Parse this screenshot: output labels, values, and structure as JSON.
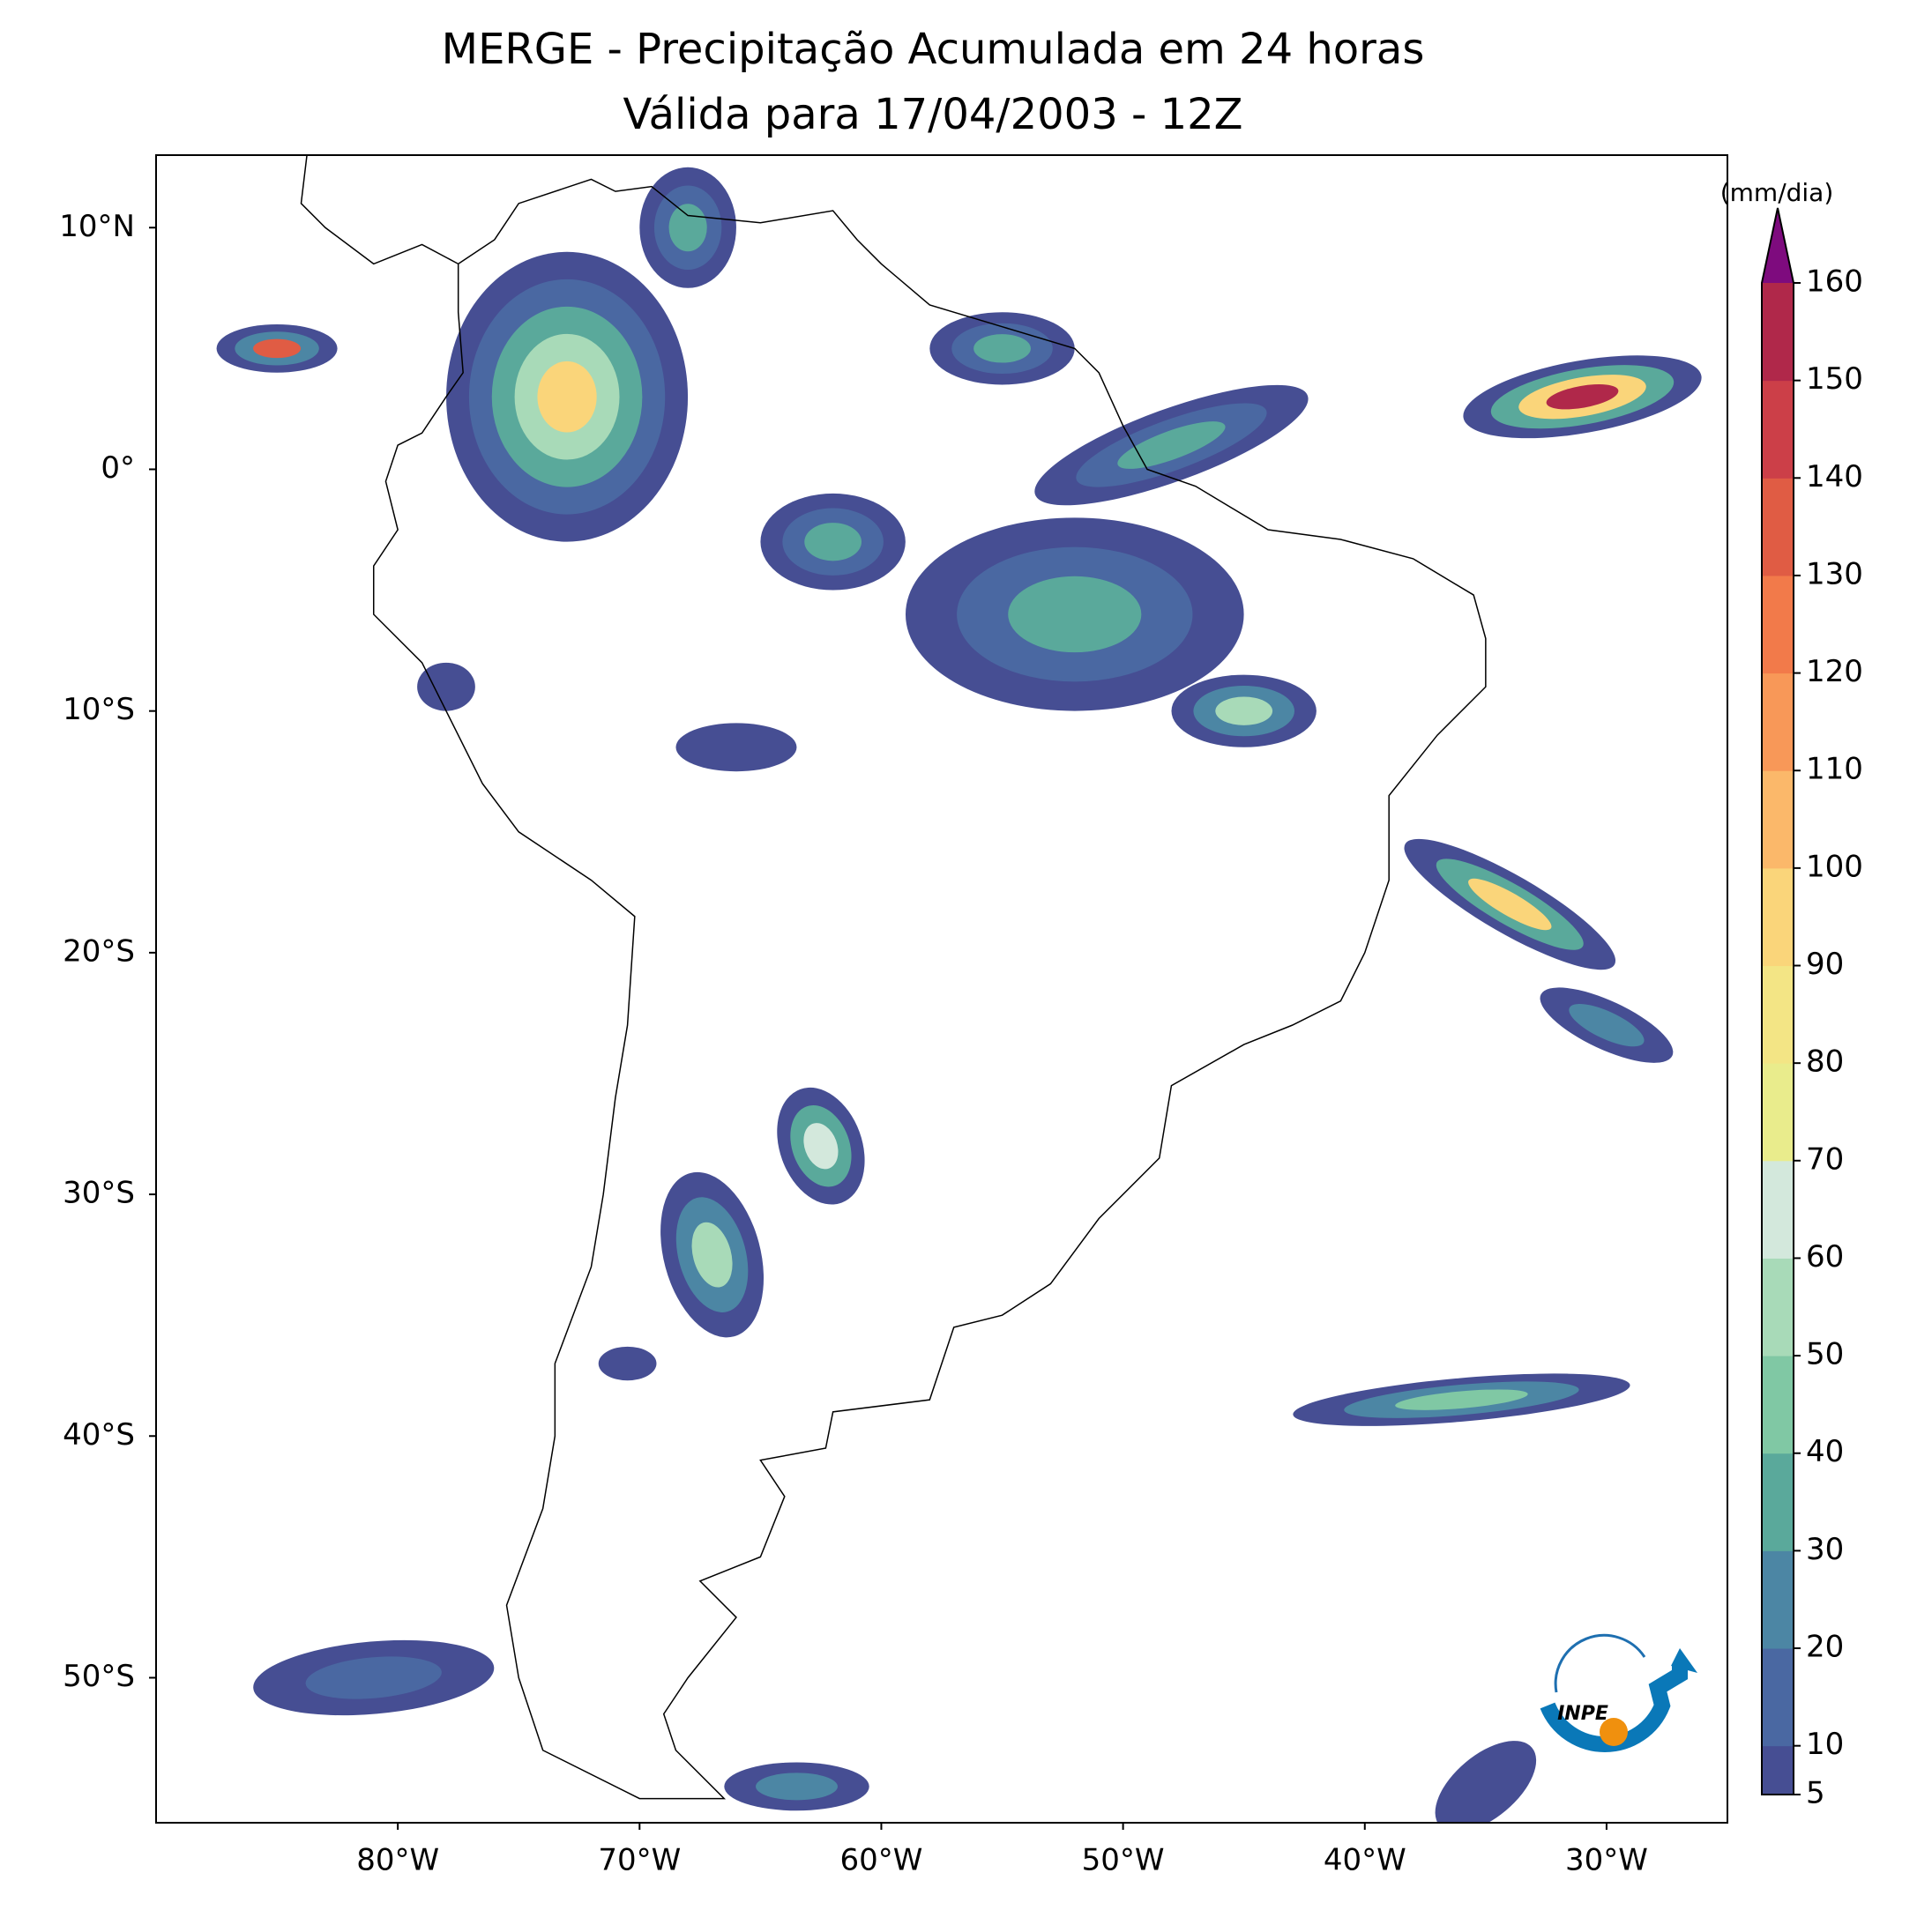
{
  "chart_data": {
    "type": "contour-map",
    "title": "MERGE - Precipitação Acumulada em 24 horas",
    "subtitle": "Válida para 17/04/2003 - 12Z",
    "xlim": [
      -90,
      -25
    ],
    "ylim": [
      -56,
      13
    ],
    "xticks": [
      {
        "value": -80,
        "label": "80°W"
      },
      {
        "value": -70,
        "label": "70°W"
      },
      {
        "value": -60,
        "label": "60°W"
      },
      {
        "value": -50,
        "label": "50°W"
      },
      {
        "value": -40,
        "label": "40°W"
      },
      {
        "value": -30,
        "label": "30°W"
      }
    ],
    "yticks": [
      {
        "value": 10,
        "label": "10°N"
      },
      {
        "value": 0,
        "label": "0°"
      },
      {
        "value": -10,
        "label": "10°S"
      },
      {
        "value": -20,
        "label": "20°S"
      },
      {
        "value": -30,
        "label": "30°S"
      },
      {
        "value": -40,
        "label": "40°S"
      },
      {
        "value": -50,
        "label": "50°S"
      }
    ],
    "colorbar": {
      "label": "(mm/dia)",
      "lim": [
        5,
        160
      ],
      "ticks": [
        5,
        10,
        20,
        30,
        40,
        50,
        60,
        70,
        80,
        90,
        100,
        110,
        120,
        130,
        140,
        150,
        160
      ],
      "colors": [
        "#464e93",
        "#4a68a2",
        "#4c86a4",
        "#5aa99b",
        "#80c8a4",
        "#a8dab8",
        "#d3e8dc",
        "#e9ec8c",
        "#f3e585",
        "#fad57a",
        "#fbb86a",
        "#f89858",
        "#f27a4a",
        "#e05c44",
        "#cc3f48",
        "#b0284a"
      ],
      "extend_color": "#7e0b7e"
    },
    "logo": "INPE"
  }
}
